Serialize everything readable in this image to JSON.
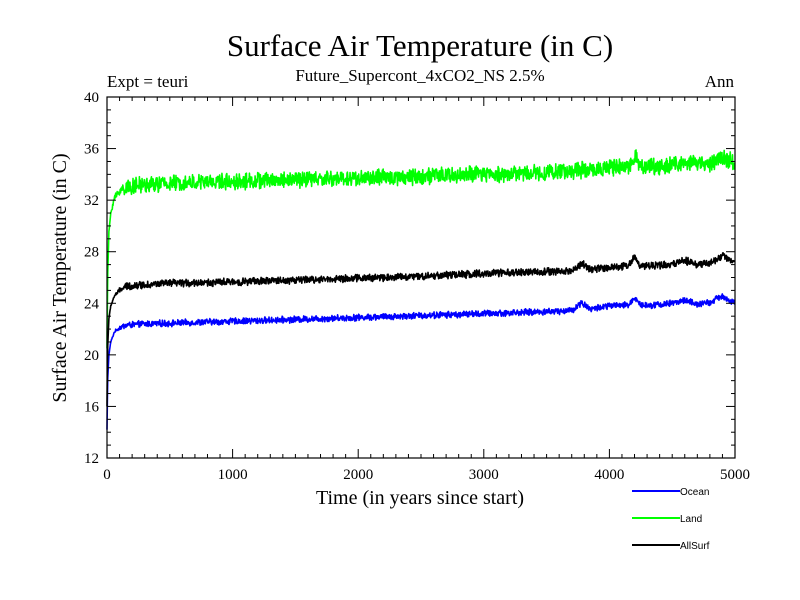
{
  "chart_data": {
    "type": "line",
    "title": "Surface Air Temperature (in C)",
    "subtitle": "Future_Supercont_4xCO2_NS 2.5%",
    "left_note": "Expt = teuri",
    "right_note": "Ann",
    "xlabel": "Time (in years since start)",
    "ylabel": "Surface Air Temperature (in C)",
    "xlim": [
      0,
      5000
    ],
    "ylim": [
      12,
      40
    ],
    "x_ticks": [
      0,
      1000,
      2000,
      3000,
      4000,
      5000
    ],
    "y_ticks": [
      12,
      16,
      20,
      24,
      28,
      32,
      36,
      40
    ],
    "x_minor_step": 100,
    "y_minor_step": 1,
    "grid": false,
    "legend_position": "bottom-right, below plot",
    "series": [
      {
        "name": "Ocean",
        "color": "#0000ff",
        "noise": 0.22,
        "points": [
          [
            0,
            14.2
          ],
          [
            5,
            18.0
          ],
          [
            15,
            20.0
          ],
          [
            30,
            21.0
          ],
          [
            60,
            21.8
          ],
          [
            100,
            22.1
          ],
          [
            150,
            22.3
          ],
          [
            300,
            22.4
          ],
          [
            500,
            22.45
          ],
          [
            800,
            22.55
          ],
          [
            1000,
            22.6
          ],
          [
            1500,
            22.75
          ],
          [
            2000,
            22.9
          ],
          [
            2500,
            23.05
          ],
          [
            3000,
            23.2
          ],
          [
            3500,
            23.35
          ],
          [
            3700,
            23.45
          ],
          [
            3780,
            24.05
          ],
          [
            3850,
            23.55
          ],
          [
            4000,
            23.8
          ],
          [
            4150,
            23.85
          ],
          [
            4200,
            24.45
          ],
          [
            4250,
            23.85
          ],
          [
            4400,
            23.9
          ],
          [
            4500,
            24.0
          ],
          [
            4600,
            24.25
          ],
          [
            4700,
            23.9
          ],
          [
            4800,
            24.05
          ],
          [
            4900,
            24.6
          ],
          [
            4950,
            24.2
          ],
          [
            5000,
            24.0
          ]
        ]
      },
      {
        "name": "Land",
        "color": "#00ff00",
        "noise": 0.55,
        "points": [
          [
            0,
            20.5
          ],
          [
            5,
            26.0
          ],
          [
            15,
            29.5
          ],
          [
            30,
            31.0
          ],
          [
            60,
            32.2
          ],
          [
            100,
            32.7
          ],
          [
            150,
            33.0
          ],
          [
            300,
            33.2
          ],
          [
            500,
            33.3
          ],
          [
            800,
            33.4
          ],
          [
            1000,
            33.45
          ],
          [
            1500,
            33.6
          ],
          [
            2000,
            33.7
          ],
          [
            2500,
            33.85
          ],
          [
            3000,
            34.0
          ],
          [
            3500,
            34.15
          ],
          [
            3800,
            34.35
          ],
          [
            4000,
            34.5
          ],
          [
            4150,
            34.5
          ],
          [
            4200,
            35.5
          ],
          [
            4250,
            34.6
          ],
          [
            4400,
            34.6
          ],
          [
            4600,
            34.9
          ],
          [
            4800,
            34.8
          ],
          [
            4900,
            35.4
          ],
          [
            5000,
            34.9
          ]
        ]
      },
      {
        "name": "AllSurf",
        "color": "#000000",
        "noise": 0.25,
        "points": [
          [
            0,
            16.0
          ],
          [
            5,
            20.5
          ],
          [
            15,
            22.8
          ],
          [
            30,
            23.8
          ],
          [
            60,
            24.6
          ],
          [
            100,
            25.0
          ],
          [
            150,
            25.3
          ],
          [
            300,
            25.45
          ],
          [
            500,
            25.55
          ],
          [
            800,
            25.6
          ],
          [
            1000,
            25.65
          ],
          [
            1500,
            25.8
          ],
          [
            2000,
            25.95
          ],
          [
            2500,
            26.1
          ],
          [
            3000,
            26.3
          ],
          [
            3500,
            26.45
          ],
          [
            3700,
            26.5
          ],
          [
            3780,
            27.1
          ],
          [
            3850,
            26.6
          ],
          [
            4000,
            26.8
          ],
          [
            4150,
            26.9
          ],
          [
            4200,
            27.6
          ],
          [
            4250,
            26.9
          ],
          [
            4400,
            26.95
          ],
          [
            4500,
            27.0
          ],
          [
            4600,
            27.35
          ],
          [
            4700,
            27.0
          ],
          [
            4800,
            27.1
          ],
          [
            4900,
            27.7
          ],
          [
            4950,
            27.35
          ],
          [
            5000,
            27.1
          ]
        ]
      }
    ]
  }
}
